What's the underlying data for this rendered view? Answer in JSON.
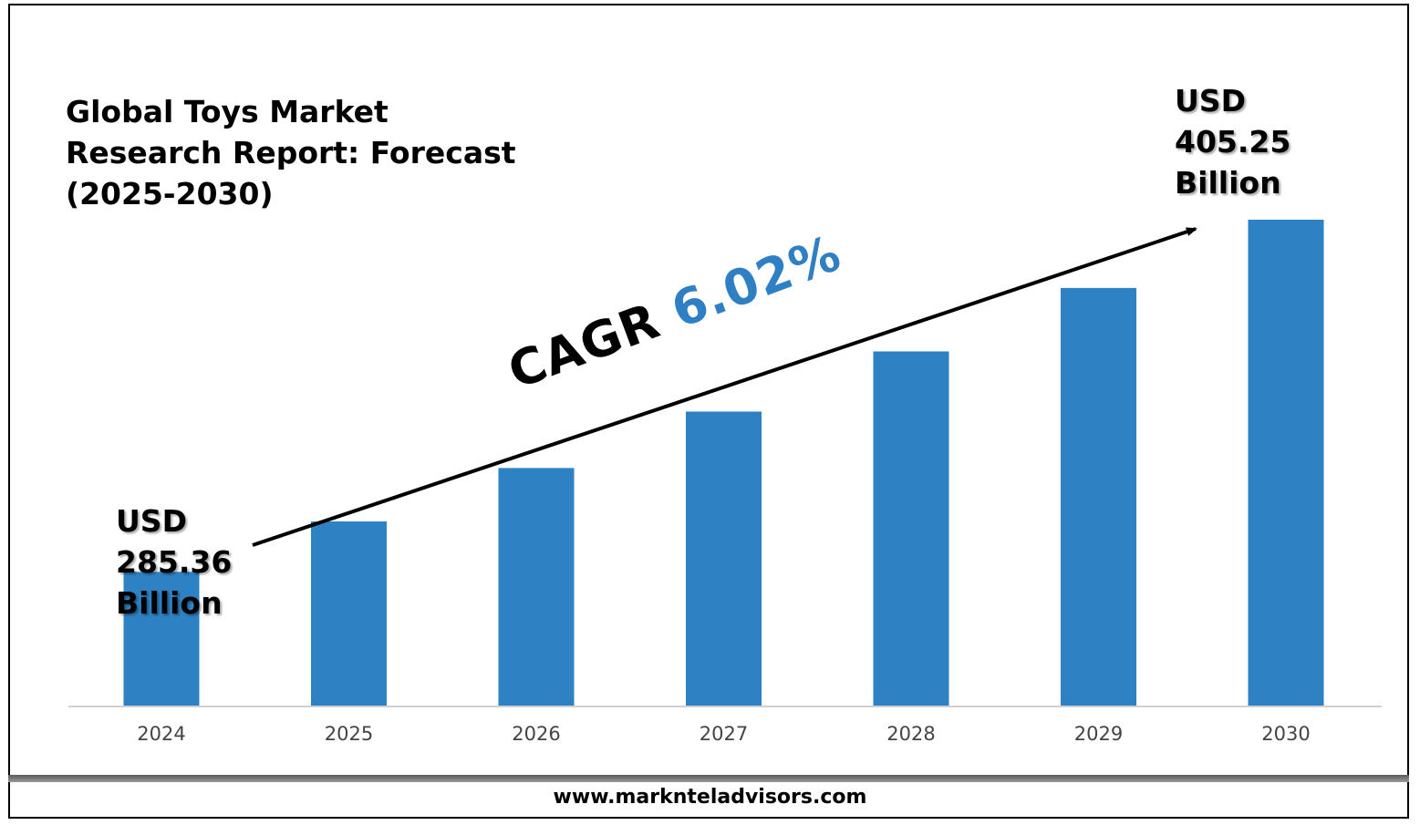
{
  "title_lines": [
    "Global Toys Market",
    "Research Report: Forecast",
    "(2025-2030)"
  ],
  "start_callout": [
    "USD",
    "285.36",
    "Billion"
  ],
  "end_callout": [
    "USD",
    "405.25",
    "Billion"
  ],
  "cagr": {
    "label": "CAGR",
    "value": "6.02%"
  },
  "footer": "www.marknteladvisors.com",
  "colors": {
    "bar": "#2e82c4",
    "cagr_value": "#2e7fc3",
    "axis": "#d0d0d0",
    "arrow": "#000000"
  },
  "chart_data": {
    "type": "bar",
    "categories": [
      "2024",
      "2025",
      "2026",
      "2027",
      "2028",
      "2029",
      "2030"
    ],
    "values": [
      285.36,
      302.5,
      320.7,
      339.9,
      360.4,
      382.0,
      405.25
    ],
    "title": "Global Toys Market Research Report: Forecast (2025-2030)",
    "xlabel": "",
    "ylabel": "",
    "unit": "USD Billion",
    "grid": false,
    "legend": "none"
  }
}
